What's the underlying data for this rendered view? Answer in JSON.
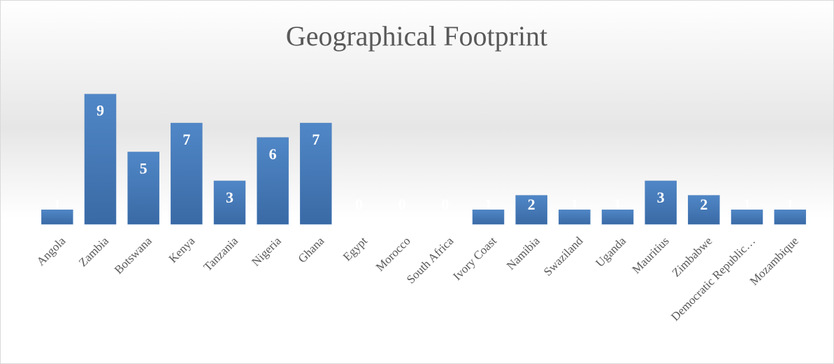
{
  "chart_data": {
    "type": "bar",
    "title": "Geographical Footprint",
    "categories": [
      "Angola",
      "Zambia",
      "Botswana",
      "Kenya",
      "Tanzania",
      "Nigeria",
      "Ghana",
      "Egypt",
      "Morocco",
      "South Africa",
      "Ivory Coast",
      "Namibia",
      "Swaziland",
      "Uganda",
      "Mauritius",
      "Zimbabwe",
      "Democratic Republic…",
      "Mozambique"
    ],
    "values": [
      1,
      9,
      5,
      7,
      3,
      6,
      7,
      0,
      0,
      0,
      1,
      2,
      1,
      1,
      3,
      2,
      1,
      1
    ],
    "color": "#4a7ebb",
    "ylim": [
      0,
      10
    ]
  }
}
